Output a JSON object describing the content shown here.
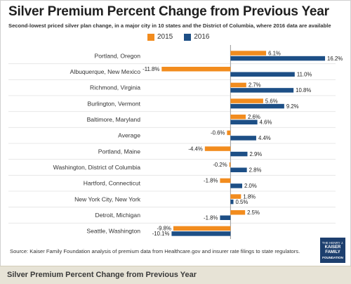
{
  "header": {
    "title": "Silver Premium Percent Change from Previous Year",
    "subtitle": "Second-lowest priced silver plan change, in a major city in 10 states and the District of Columbia, where 2016 data are available"
  },
  "colors": {
    "series_2015": "#f28c1e",
    "series_2016": "#1d4f86"
  },
  "footer": {
    "source": "Source: Kaiser Family Foundation analysis of premium data from Healthcare.gov and insurer rate filings to state regulators.",
    "logo_lines": [
      "THE HENRY J.",
      "KAISER",
      "FAMILY",
      "FOUNDATION"
    ],
    "caption": "Silver Premium Percent Change from Previous Year"
  },
  "chart_data": {
    "type": "bar",
    "orientation": "horizontal",
    "categories": [
      "Portland, Oregon",
      "Albuquerque, New Mexico",
      "Richmond, Virginia",
      "Burlington, Vermont",
      "Baltimore, Maryland",
      "Average",
      "Portland, Maine",
      "Washington, District of Columbia",
      "Hartford, Connecticut",
      "New York City, New York",
      "Detroit, Michigan",
      "Seattle, Washington"
    ],
    "series": [
      {
        "name": "2015",
        "values": [
          6.1,
          -11.8,
          2.7,
          5.6,
          2.6,
          -0.6,
          -4.4,
          -0.2,
          -1.8,
          1.8,
          2.5,
          -9.8
        ],
        "labels": [
          "6.1%",
          "-11.8%",
          "2.7%",
          "5.6%",
          "2.6%",
          "-0.6%",
          "-4.4%",
          "-0.2%",
          "-1.8%",
          "1.8%",
          "2.5%",
          "-9.8%"
        ]
      },
      {
        "name": "2016",
        "values": [
          16.2,
          11.0,
          10.8,
          9.2,
          4.6,
          4.4,
          2.9,
          2.8,
          2.0,
          0.5,
          -1.8,
          -10.1
        ],
        "labels": [
          "16.2%",
          "11.0%",
          "10.8%",
          "9.2%",
          "4.6%",
          "4.4%",
          "2.9%",
          "2.8%",
          "2.0%",
          "0.5%",
          "-1.8%",
          "-10.1%"
        ]
      }
    ],
    "xlim": [
      -14,
      18
    ],
    "legend_position": "top-center",
    "grid": false
  }
}
